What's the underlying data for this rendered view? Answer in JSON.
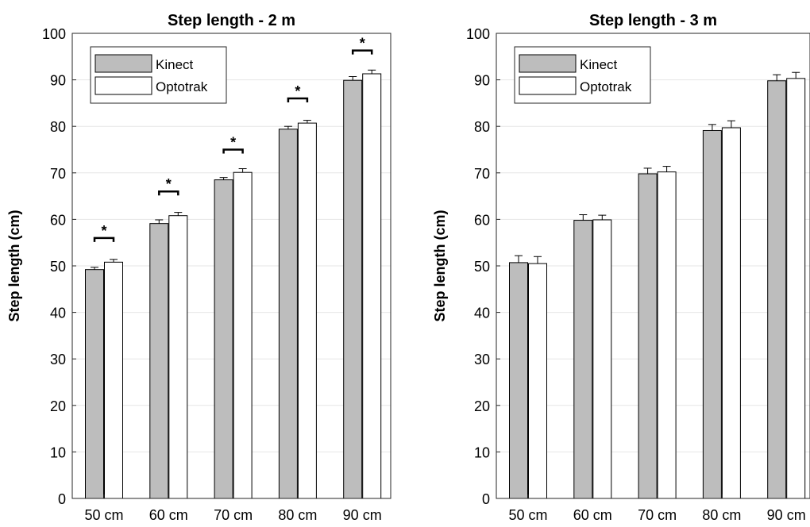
{
  "chart_data": [
    {
      "type": "bar",
      "title": "Step length - 2 m",
      "xlabel": "",
      "ylabel": "Step length (cm)",
      "ylim": [
        0,
        100
      ],
      "yticks": [
        "0",
        "10",
        "20",
        "30",
        "40",
        "50",
        "60",
        "70",
        "80",
        "90",
        "100"
      ],
      "grid": "horizontal",
      "legend_position": "top-left",
      "categories": [
        "50 cm",
        "60 cm",
        "70 cm",
        "80 cm",
        "90 cm"
      ],
      "series": [
        {
          "name": "Kinect",
          "color": "#bdbdbd",
          "values": [
            49.2,
            59.1,
            68.5,
            79.4,
            89.9
          ],
          "errors": [
            0.5,
            0.8,
            0.5,
            0.6,
            0.8
          ]
        },
        {
          "name": "Optotrak",
          "color": "#ffffff",
          "values": [
            50.8,
            60.8,
            70.1,
            80.7,
            91.3
          ],
          "errors": [
            0.6,
            0.7,
            0.8,
            0.6,
            0.8
          ]
        }
      ],
      "significance": [
        {
          "label": "*",
          "y": 56.0
        },
        {
          "label": "*",
          "y": 66.0
        },
        {
          "label": "*",
          "y": 75.0
        },
        {
          "label": "*",
          "y": 86.0
        },
        {
          "label": "*",
          "y": 96.3
        }
      ]
    },
    {
      "type": "bar",
      "title": "Step length - 3 m",
      "xlabel": "",
      "ylabel": "Step length (cm)",
      "ylim": [
        0,
        100
      ],
      "yticks": [
        "0",
        "10",
        "20",
        "30",
        "40",
        "50",
        "60",
        "70",
        "80",
        "90",
        "100"
      ],
      "grid": "horizontal",
      "legend_position": "top-left",
      "categories": [
        "50 cm",
        "60 cm",
        "70 cm",
        "80 cm",
        "90 cm"
      ],
      "series": [
        {
          "name": "Kinect",
          "color": "#bdbdbd",
          "values": [
            50.7,
            59.8,
            69.8,
            79.1,
            89.8
          ],
          "errors": [
            1.5,
            1.2,
            1.2,
            1.3,
            1.3
          ]
        },
        {
          "name": "Optotrak",
          "color": "#ffffff",
          "values": [
            50.5,
            59.9,
            70.2,
            79.7,
            90.3
          ],
          "errors": [
            1.5,
            1.0,
            1.2,
            1.5,
            1.3
          ]
        }
      ],
      "significance": []
    }
  ]
}
